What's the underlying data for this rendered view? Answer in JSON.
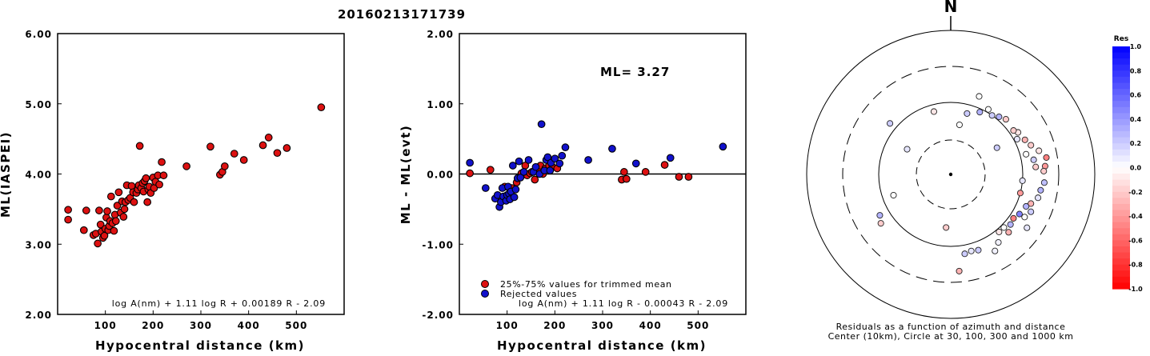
{
  "title": "20160213171739",
  "colors": {
    "red": "#dd1111",
    "blue": "#1111cc",
    "axis": "#000000"
  },
  "chart_data": [
    {
      "type": "scatter",
      "xlabel": "Hypocentral distance (km)",
      "ylabel": "ML(IASPEI)",
      "xlim": [
        0,
        600
      ],
      "ylim": [
        2,
        6
      ],
      "xticks": [
        "100",
        "200",
        "300",
        "400",
        "500"
      ],
      "yticks": [
        "2.00",
        "3.00",
        "4.00",
        "5.00",
        "6.00"
      ],
      "formula": "log A(nm) + 1.11 log R + 0.00189 R - 2.09",
      "points": [
        [
          22,
          3.49
        ],
        [
          22,
          3.35
        ],
        [
          55,
          3.2
        ],
        [
          60,
          3.48
        ],
        [
          75,
          3.13
        ],
        [
          80,
          3.15
        ],
        [
          84,
          3.01
        ],
        [
          87,
          3.48
        ],
        [
          90,
          3.28
        ],
        [
          92,
          3.18
        ],
        [
          95,
          3.09
        ],
        [
          98,
          3.12
        ],
        [
          100,
          3.22
        ],
        [
          102,
          3.38
        ],
        [
          104,
          3.47
        ],
        [
          106,
          3.2
        ],
        [
          108,
          3.26
        ],
        [
          110,
          3.33
        ],
        [
          112,
          3.68
        ],
        [
          115,
          3.3
        ],
        [
          118,
          3.19
        ],
        [
          120,
          3.42
        ],
        [
          122,
          3.33
        ],
        [
          125,
          3.55
        ],
        [
          128,
          3.74
        ],
        [
          132,
          3.45
        ],
        [
          135,
          3.61
        ],
        [
          138,
          3.39
        ],
        [
          140,
          3.5
        ],
        [
          142,
          3.6
        ],
        [
          145,
          3.84
        ],
        [
          148,
          3.63
        ],
        [
          152,
          3.66
        ],
        [
          155,
          3.83
        ],
        [
          158,
          3.74
        ],
        [
          160,
          3.6
        ],
        [
          165,
          3.73
        ],
        [
          168,
          3.78
        ],
        [
          170,
          3.84
        ],
        [
          172,
          4.4
        ],
        [
          175,
          3.8
        ],
        [
          178,
          3.87
        ],
        [
          180,
          3.75
        ],
        [
          182,
          3.9
        ],
        [
          185,
          3.94
        ],
        [
          188,
          3.6
        ],
        [
          190,
          3.78
        ],
        [
          192,
          3.82
        ],
        [
          195,
          3.73
        ],
        [
          200,
          3.95
        ],
        [
          202,
          3.8
        ],
        [
          205,
          3.89
        ],
        [
          210,
          3.98
        ],
        [
          213,
          3.85
        ],
        [
          218,
          4.17
        ],
        [
          222,
          3.98
        ],
        [
          270,
          4.11
        ],
        [
          320,
          4.39
        ],
        [
          340,
          3.99
        ],
        [
          345,
          4.03
        ],
        [
          350,
          4.11
        ],
        [
          370,
          4.29
        ],
        [
          390,
          4.2
        ],
        [
          430,
          4.41
        ],
        [
          442,
          4.52
        ],
        [
          460,
          4.3
        ],
        [
          480,
          4.37
        ],
        [
          552,
          4.95
        ]
      ]
    },
    {
      "type": "scatter",
      "xlabel": "Hypocentral distance (km)",
      "ylabel": "ML - ML(evt)",
      "xlim": [
        0,
        600
      ],
      "ylim": [
        -2,
        2
      ],
      "xticks": [
        "100",
        "200",
        "300",
        "400",
        "500"
      ],
      "yticks": [
        "-2.00",
        "-1.00",
        "0.00",
        "1.00",
        "2.00"
      ],
      "annotation": "ML= 3.27",
      "formula": "log A(nm) + 1.11 log R - 0.00043 R - 2.09",
      "series": [
        {
          "name": "25%-75% values for trimmed mean",
          "color": "red",
          "points": [
            [
              22,
              0.01
            ],
            [
              65,
              0.06
            ],
            [
              95,
              -0.18
            ],
            [
              110,
              -0.2
            ],
            [
              120,
              -0.12
            ],
            [
              130,
              0.01
            ],
            [
              138,
              0.12
            ],
            [
              142,
              -0.02
            ],
            [
              148,
              0.01
            ],
            [
              152,
              0.03
            ],
            [
              158,
              -0.08
            ],
            [
              165,
              0.08
            ],
            [
              170,
              0.12
            ],
            [
              175,
              0.0
            ],
            [
              180,
              0.08
            ],
            [
              188,
              0.12
            ],
            [
              195,
              0.1
            ],
            [
              205,
              0.08
            ],
            [
              340,
              -0.08
            ],
            [
              345,
              0.03
            ],
            [
              350,
              -0.07
            ],
            [
              390,
              0.03
            ],
            [
              430,
              0.13
            ],
            [
              460,
              -0.04
            ],
            [
              480,
              -0.04
            ]
          ]
        },
        {
          "name": "Rejected values",
          "color": "blue",
          "points": [
            [
              22,
              0.16
            ],
            [
              55,
              -0.2
            ],
            [
              75,
              -0.35
            ],
            [
              80,
              -0.3
            ],
            [
              84,
              -0.47
            ],
            [
              87,
              -0.4
            ],
            [
              90,
              -0.2
            ],
            [
              92,
              -0.32
            ],
            [
              98,
              -0.38
            ],
            [
              100,
              -0.3
            ],
            [
              102,
              -0.18
            ],
            [
              104,
              -0.28
            ],
            [
              106,
              -0.36
            ],
            [
              108,
              -0.25
            ],
            [
              112,
              0.12
            ],
            [
              115,
              -0.33
            ],
            [
              118,
              -0.22
            ],
            [
              122,
              -0.06
            ],
            [
              125,
              0.18
            ],
            [
              128,
              -0.05
            ],
            [
              135,
              0.03
            ],
            [
              145,
              0.2
            ],
            [
              155,
              0.03
            ],
            [
              160,
              0.1
            ],
            [
              168,
              0.0
            ],
            [
              172,
              0.71
            ],
            [
              178,
              0.05
            ],
            [
              182,
              0.2
            ],
            [
              185,
              0.24
            ],
            [
              190,
              0.05
            ],
            [
              192,
              0.16
            ],
            [
              200,
              0.22
            ],
            [
              210,
              0.15
            ],
            [
              215,
              0.26
            ],
            [
              222,
              0.38
            ],
            [
              270,
              0.2
            ],
            [
              320,
              0.36
            ],
            [
              370,
              0.15
            ],
            [
              442,
              0.23
            ],
            [
              552,
              0.39
            ]
          ]
        }
      ]
    },
    {
      "type": "scatter",
      "subtype": "polar",
      "north_label": "N",
      "caption_line1": "Residuals as a function of azimuth and distance",
      "caption_line2": "Center (10km), Circle at 30, 100, 300 and 1000 km",
      "colorbar_title": "Res",
      "colorbar_ticks": [
        "1.0",
        "0.8",
        "0.6",
        "0.4",
        "0.2",
        "0.0",
        "-0.2",
        "-0.4",
        "-0.6",
        "-0.8",
        "-1.0"
      ],
      "points": [
        {
          "az": 60,
          "dist": 55,
          "res": 0.2
        },
        {
          "az": 250,
          "dist": 70,
          "res": 0.0
        },
        {
          "az": 80,
          "dist": 215,
          "res": -0.5
        },
        {
          "az": 85,
          "dist": 200,
          "res": -0.4
        },
        {
          "az": 75,
          "dist": 180,
          "res": -0.1
        },
        {
          "az": 88,
          "dist": 190,
          "res": -0.2
        },
        {
          "az": 95,
          "dist": 195,
          "res": 0.25
        },
        {
          "az": 100,
          "dist": 180,
          "res": 0.3
        },
        {
          "az": 105,
          "dist": 175,
          "res": 0.1
        },
        {
          "az": 110,
          "dist": 150,
          "res": -0.3
        },
        {
          "az": 115,
          "dist": 165,
          "res": 0.2
        },
        {
          "az": 120,
          "dist": 150,
          "res": 0.0
        },
        {
          "az": 125,
          "dist": 190,
          "res": 0.1
        },
        {
          "az": 130,
          "dist": 120,
          "res": 0.3
        },
        {
          "az": 135,
          "dist": 135,
          "res": -0.3
        },
        {
          "az": 140,
          "dist": 110,
          "res": -0.1
        },
        {
          "az": 145,
          "dist": 140,
          "res": 0.05
        },
        {
          "az": 150,
          "dist": 165,
          "res": 0.05
        },
        {
          "az": 160,
          "dist": 130,
          "res": 0.2
        },
        {
          "az": 165,
          "dist": 125,
          "res": 0.1
        },
        {
          "az": 70,
          "dist": 150,
          "res": -0.2
        },
        {
          "az": 65,
          "dist": 135,
          "res": -0.3
        },
        {
          "az": 58,
          "dist": 125,
          "res": -0.1
        },
        {
          "az": 55,
          "dist": 115,
          "res": -0.2
        },
        {
          "az": 62,
          "dist": 110,
          "res": 0.1
        },
        {
          "az": 45,
          "dist": 120,
          "res": -0.2
        },
        {
          "az": 40,
          "dist": 110,
          "res": 0.3
        },
        {
          "az": 35,
          "dist": 100,
          "res": 0.2
        },
        {
          "az": 30,
          "dist": 110,
          "res": 0.0
        },
        {
          "az": 25,
          "dist": 90,
          "res": 0.3
        },
        {
          "az": 20,
          "dist": 140,
          "res": 0.0
        },
        {
          "az": 15,
          "dist": 75,
          "res": 0.2
        },
        {
          "az": 10,
          "dist": 50,
          "res": 0.0
        },
        {
          "az": 345,
          "dist": 80,
          "res": -0.1
        },
        {
          "az": 310,
          "dist": 125,
          "res": 0.2
        },
        {
          "az": 300,
          "dist": 50,
          "res": 0.1
        },
        {
          "az": 240,
          "dist": 135,
          "res": 0.3
        },
        {
          "az": 235,
          "dist": 150,
          "res": -0.2
        },
        {
          "az": 185,
          "dist": 55,
          "res": -0.2
        },
        {
          "az": 175,
          "dist": 215,
          "res": -0.3
        },
        {
          "az": 170,
          "dist": 130,
          "res": 0.2
        },
        {
          "az": 105,
          "dist": 100,
          "res": -0.4
        },
        {
          "az": 95,
          "dist": 100,
          "res": 0.1
        },
        {
          "az": 85,
          "dist": 150,
          "res": -0.2
        },
        {
          "az": 80,
          "dist": 145,
          "res": 0.2
        },
        {
          "az": 75,
          "dist": 120,
          "res": 0.0
        },
        {
          "az": 120,
          "dist": 125,
          "res": 0.5
        },
        {
          "az": 125,
          "dist": 115,
          "res": -0.5
        },
        {
          "az": 113,
          "dist": 135,
          "res": 0.3
        },
        {
          "az": 135,
          "dist": 110,
          "res": 0.0
        }
      ]
    }
  ]
}
